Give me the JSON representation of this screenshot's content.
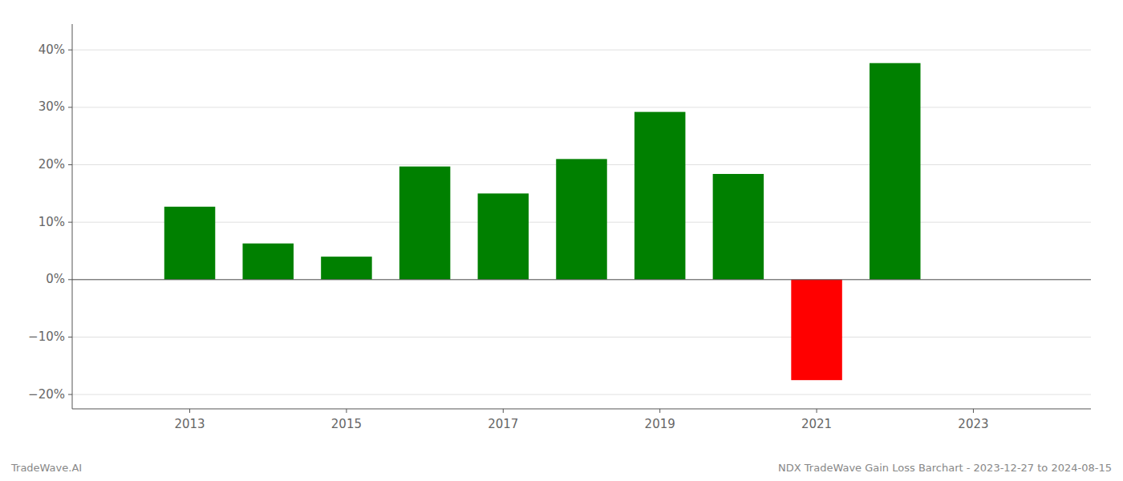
{
  "chart_data": {
    "type": "bar",
    "x": [
      2013,
      2014,
      2015,
      2016,
      2017,
      2018,
      2019,
      2020,
      2021,
      2022
    ],
    "values": [
      0.127,
      0.063,
      0.04,
      0.197,
      0.15,
      0.21,
      0.292,
      0.184,
      -0.175,
      0.377
    ],
    "colors": [
      "#008000",
      "#008000",
      "#008000",
      "#008000",
      "#008000",
      "#008000",
      "#008000",
      "#008000",
      "#ff0000",
      "#008000"
    ],
    "xlim": [
      2011.5,
      2024.5
    ],
    "xticks": [
      2013,
      2015,
      2017,
      2019,
      2021,
      2023
    ],
    "ylim": [
      -0.225,
      0.445
    ],
    "yticks": [
      {
        "value": -0.2,
        "label": "−20%"
      },
      {
        "value": -0.1,
        "label": "−10%"
      },
      {
        "value": 0.0,
        "label": "0%"
      },
      {
        "value": 0.1,
        "label": "10%"
      },
      {
        "value": 0.2,
        "label": "20%"
      },
      {
        "value": 0.3,
        "label": "30%"
      },
      {
        "value": 0.4,
        "label": "40%"
      }
    ],
    "grid": true,
    "annotations": [
      "TradeWave.AI",
      "NDX TradeWave Gain Loss Barchart - 2023-12-27 to 2024-08-15"
    ]
  }
}
